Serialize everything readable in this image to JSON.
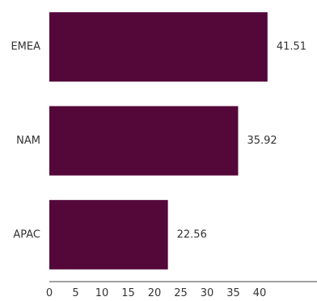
{
  "chart_data": {
    "type": "bar",
    "orientation": "horizontal",
    "categories": [
      "EMEA",
      "NAM",
      "APAC"
    ],
    "values": [
      41.51,
      35.92,
      22.56
    ],
    "value_labels": [
      "41.51",
      "35.92",
      "22.56"
    ],
    "bar_color": "#54083a",
    "xlim": [
      0,
      45
    ],
    "x_ticks": [
      0,
      5,
      10,
      15,
      20,
      25,
      30,
      35,
      40
    ],
    "title": "",
    "xlabel": "",
    "ylabel": "",
    "grid": false,
    "legend": "none"
  }
}
